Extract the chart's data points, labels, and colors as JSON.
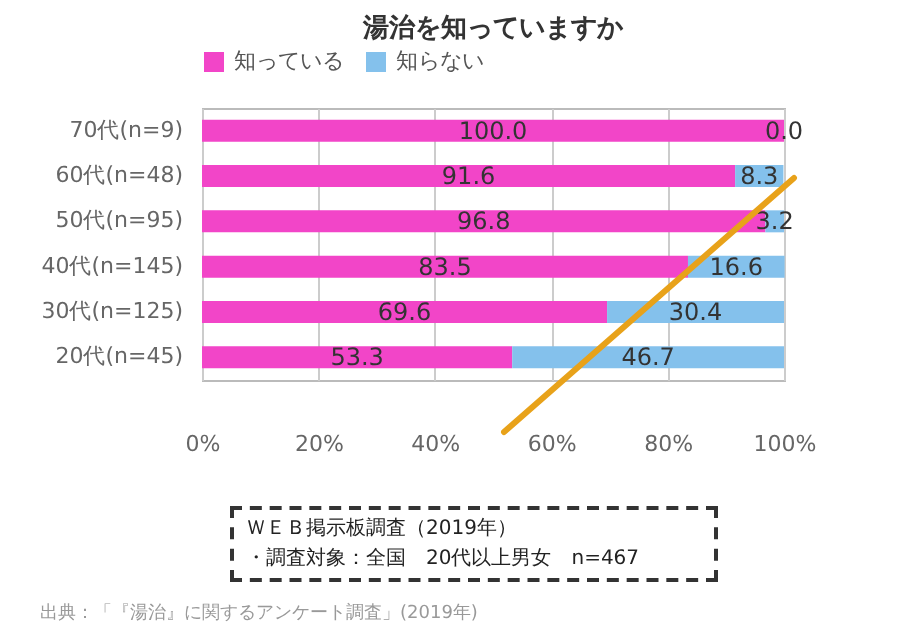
{
  "chart_data": {
    "type": "bar",
    "orientation": "horizontal",
    "stacked": true,
    "title": "湯治を知っていますか",
    "categories": [
      "70代(n=9)",
      "60代(n=48)",
      "50代(n=95)",
      "40代(n=145)",
      "30代(n=125)",
      "20代(n=45)"
    ],
    "series": [
      {
        "name": "知っている",
        "color": "#f245c8",
        "values": [
          100.0,
          91.6,
          96.8,
          83.5,
          69.6,
          53.3
        ],
        "value_labels": [
          "100.0",
          "91.6",
          "96.8",
          "83.5",
          "69.6",
          "53.3"
        ]
      },
      {
        "name": "知らない",
        "color": "#84c1ec",
        "values": [
          0.0,
          8.3,
          3.2,
          16.6,
          30.4,
          46.7
        ],
        "value_labels": [
          "0.0",
          "8.3",
          "3.2",
          "16.6",
          "30.4",
          "46.7"
        ]
      }
    ],
    "xlim": [
      0,
      100
    ],
    "xticks": [
      {
        "value": 0,
        "label": "0%"
      },
      {
        "value": 20,
        "label": "20%"
      },
      {
        "value": 40,
        "label": "40%"
      },
      {
        "value": 60,
        "label": "60%"
      },
      {
        "value": 80,
        "label": "80%"
      },
      {
        "value": 100,
        "label": "100%"
      }
    ],
    "grid": "x",
    "legend": "top",
    "annotations": [
      "ＷＥＢ掲示板調査（2019年）",
      "・調査対象：全国　20代以上男女　n=467",
      "出典：「『湯治』に関するアンケート調査」(2019年)"
    ]
  }
}
